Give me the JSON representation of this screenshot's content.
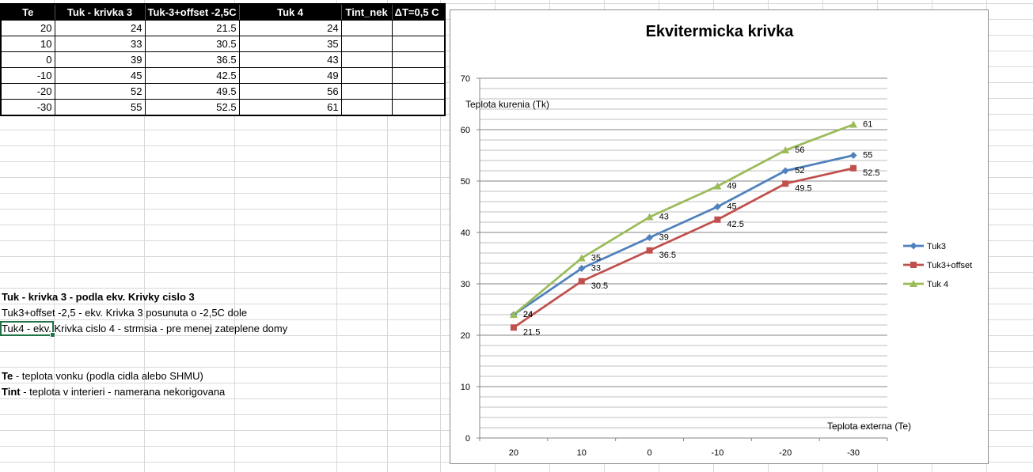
{
  "table": {
    "headers": [
      "Te",
      "Tuk - krivka 3",
      "Tuk-3+offset -2,5C",
      "Tuk 4",
      "Tint_nek",
      "ΔT=0,5 C"
    ],
    "rows": [
      [
        "20",
        "24",
        "21.5",
        "24",
        "",
        ""
      ],
      [
        "10",
        "33",
        "30.5",
        "35",
        "",
        ""
      ],
      [
        "0",
        "39",
        "36.5",
        "43",
        "",
        ""
      ],
      [
        "-10",
        "45",
        "42.5",
        "49",
        "",
        ""
      ],
      [
        "-20",
        "52",
        "49.5",
        "56",
        "",
        ""
      ],
      [
        "-30",
        "55",
        "52.5",
        "61",
        "",
        ""
      ]
    ]
  },
  "notes": {
    "line1_bold": "Tuk - krivka 3  - podla ekv. Krivky cislo 3",
    "line2": "Tuk3+offset -2,5 - ekv. Krivka 3 posunuta o -2,5C dole",
    "line3": "Tuk4 - ekv. Krivka cislo 4 - strmsia - pre menej zateplene domy",
    "line4_bold": "Te",
    "line4_rest": " - teplota vonku (podla cidla alebo SHMU)",
    "line5_bold": "Tint",
    "line5_rest": " - teplota v interieri - namerana nekorigovana"
  },
  "chart_data": {
    "type": "line",
    "title": "Ekvitermicka krivka",
    "categories": [
      "20",
      "10",
      "0",
      "-10",
      "-20",
      "-30"
    ],
    "ylabel": "Teplota kurenia (Tk)",
    "xlabel": "Teplota externa (Te)",
    "ylim": [
      0,
      70
    ],
    "yticks": [
      0,
      10,
      20,
      30,
      40,
      50,
      60,
      70
    ],
    "grid": true,
    "legend_position": "right",
    "series": [
      {
        "name": "Tuk3",
        "values": [
          24,
          33,
          39,
          45,
          52,
          55
        ],
        "color": "#4F81BD",
        "marker": "diamond"
      },
      {
        "name": "Tuk3+offset",
        "values": [
          21.5,
          30.5,
          36.5,
          42.5,
          49.5,
          52.5
        ],
        "color": "#C0504D",
        "marker": "square"
      },
      {
        "name": "Tuk 4",
        "values": [
          24,
          35,
          43,
          49,
          56,
          61
        ],
        "color": "#9BBB59",
        "marker": "triangle"
      }
    ]
  }
}
